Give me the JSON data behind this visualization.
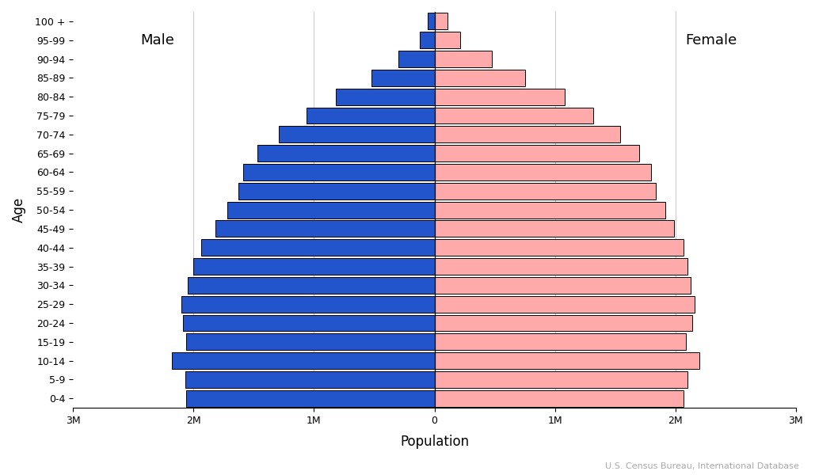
{
  "age_groups": [
    "0-4",
    "5-9",
    "10-14",
    "15-19",
    "20-24",
    "25-29",
    "30-34",
    "35-39",
    "40-44",
    "45-49",
    "50-54",
    "55-59",
    "60-64",
    "65-69",
    "70-74",
    "75-79",
    "80-84",
    "85-89",
    "90-94",
    "95-99",
    "100 +"
  ],
  "male": [
    2.06,
    2.07,
    2.18,
    2.06,
    2.09,
    2.1,
    2.05,
    2.0,
    1.94,
    1.82,
    1.72,
    1.63,
    1.59,
    1.47,
    1.29,
    1.065,
    0.82,
    0.521,
    0.299,
    0.121,
    0.059
  ],
  "female": [
    2.07,
    2.1,
    2.2,
    2.09,
    2.14,
    2.16,
    2.13,
    2.1,
    2.07,
    1.99,
    1.92,
    1.84,
    1.8,
    1.7,
    1.54,
    1.32,
    1.08,
    0.75,
    0.474,
    0.216,
    0.11
  ],
  "male_color": "#2255cc",
  "female_color": "#ffaaaa",
  "edge_color": "#000000",
  "background_color": "#ffffff",
  "xlabel": "Population",
  "ylabel": "Age",
  "male_label": "Male",
  "female_label": "Female",
  "source_text": "U.S. Census Bureau, International Database",
  "xlim": 3.0,
  "grid_color": "#cccccc",
  "tick_positions": [
    -3,
    -2,
    -1,
    0,
    1,
    2,
    3
  ],
  "tick_labels": [
    "3M",
    "2M",
    "1M",
    "0",
    "1M",
    "2M",
    "3M"
  ],
  "grid_x_vals": [
    -2,
    -1,
    0,
    1,
    2
  ]
}
